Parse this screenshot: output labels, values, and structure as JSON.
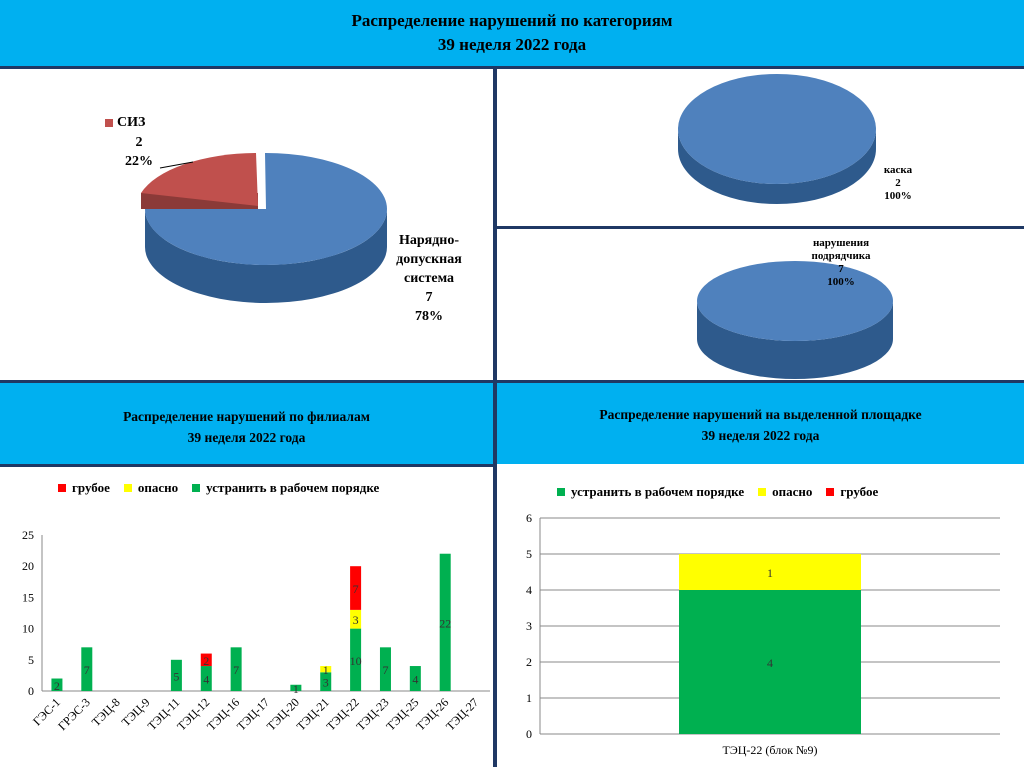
{
  "header": {
    "title": "Распределение нарушений по категориям",
    "subtitle": "39 неделя 2022 года"
  },
  "colors": {
    "header_bg": "#00b0f0",
    "border": "#1f3864",
    "pie_blue": "#4f81bd",
    "pie_red": "#c0504d",
    "green": "#00b050",
    "yellow": "#ffff00",
    "red": "#ff0000"
  },
  "chart_data": [
    {
      "type": "pie",
      "slices": [
        {
          "name": "СИЗ",
          "value": 2,
          "percent": "22%",
          "color": "#c0504d"
        },
        {
          "name": "Нарядно-допускная система",
          "value": 7,
          "percent": "78%",
          "color": "#4f81bd"
        }
      ]
    },
    {
      "type": "pie",
      "slices": [
        {
          "name": "каска",
          "value": 2,
          "percent": "100%",
          "color": "#4f81bd"
        }
      ]
    },
    {
      "type": "pie",
      "slices": [
        {
          "name": "нарушения подрядчика",
          "value": 7,
          "percent": "100%",
          "color": "#4f81bd"
        }
      ]
    },
    {
      "type": "bar",
      "stacked": true,
      "title": "Распределение нарушений по филиалам",
      "subtitle": "39 неделя  2022 года",
      "categories": [
        "ГЭС-1",
        "ГРЭС-3",
        "ТЭЦ-8",
        "ТЭЦ-9",
        "ТЭЦ-11",
        "ТЭЦ-12",
        "ТЭЦ-16",
        "ТЭЦ-17",
        "ТЭЦ-20",
        "ТЭЦ-21",
        "ТЭЦ-22",
        "ТЭЦ-23",
        "ТЭЦ-25",
        "ТЭЦ-26",
        "ТЭЦ-27"
      ],
      "series": [
        {
          "name": "устранить в рабочем порядке",
          "color": "#00b050",
          "values": [
            2,
            7,
            0,
            0,
            5,
            4,
            7,
            0,
            1,
            3,
            10,
            7,
            4,
            22,
            0
          ]
        },
        {
          "name": "опасно",
          "color": "#ffff00",
          "values": [
            0,
            0,
            0,
            0,
            0,
            0,
            0,
            0,
            0,
            1,
            3,
            0,
            0,
            0,
            0
          ]
        },
        {
          "name": "грубое",
          "color": "#ff0000",
          "values": [
            0,
            0,
            0,
            0,
            0,
            2,
            0,
            0,
            0,
            0,
            7,
            0,
            0,
            0,
            0
          ]
        }
      ],
      "legend": [
        "грубое",
        "опасно",
        "устранить в рабочем порядке"
      ],
      "ylim": [
        0,
        25
      ],
      "yticks": [
        0,
        5,
        10,
        15,
        20,
        25
      ]
    },
    {
      "type": "bar",
      "stacked": true,
      "title": "Распределение нарушений на выделенной площадке",
      "subtitle": "39 неделя 2022 года",
      "categories": [
        "ТЭЦ-22 (блок №9)"
      ],
      "series": [
        {
          "name": "устранить в рабочем порядке",
          "color": "#00b050",
          "values": [
            4
          ]
        },
        {
          "name": "опасно",
          "color": "#ffff00",
          "values": [
            1
          ]
        },
        {
          "name": "грубое",
          "color": "#ff0000",
          "values": [
            0
          ]
        }
      ],
      "legend": [
        "устранить в рабочем порядке",
        "опасно",
        "грубое"
      ],
      "ylim": [
        0,
        6
      ],
      "yticks": [
        0,
        1,
        2,
        3,
        4,
        5,
        6
      ]
    }
  ]
}
